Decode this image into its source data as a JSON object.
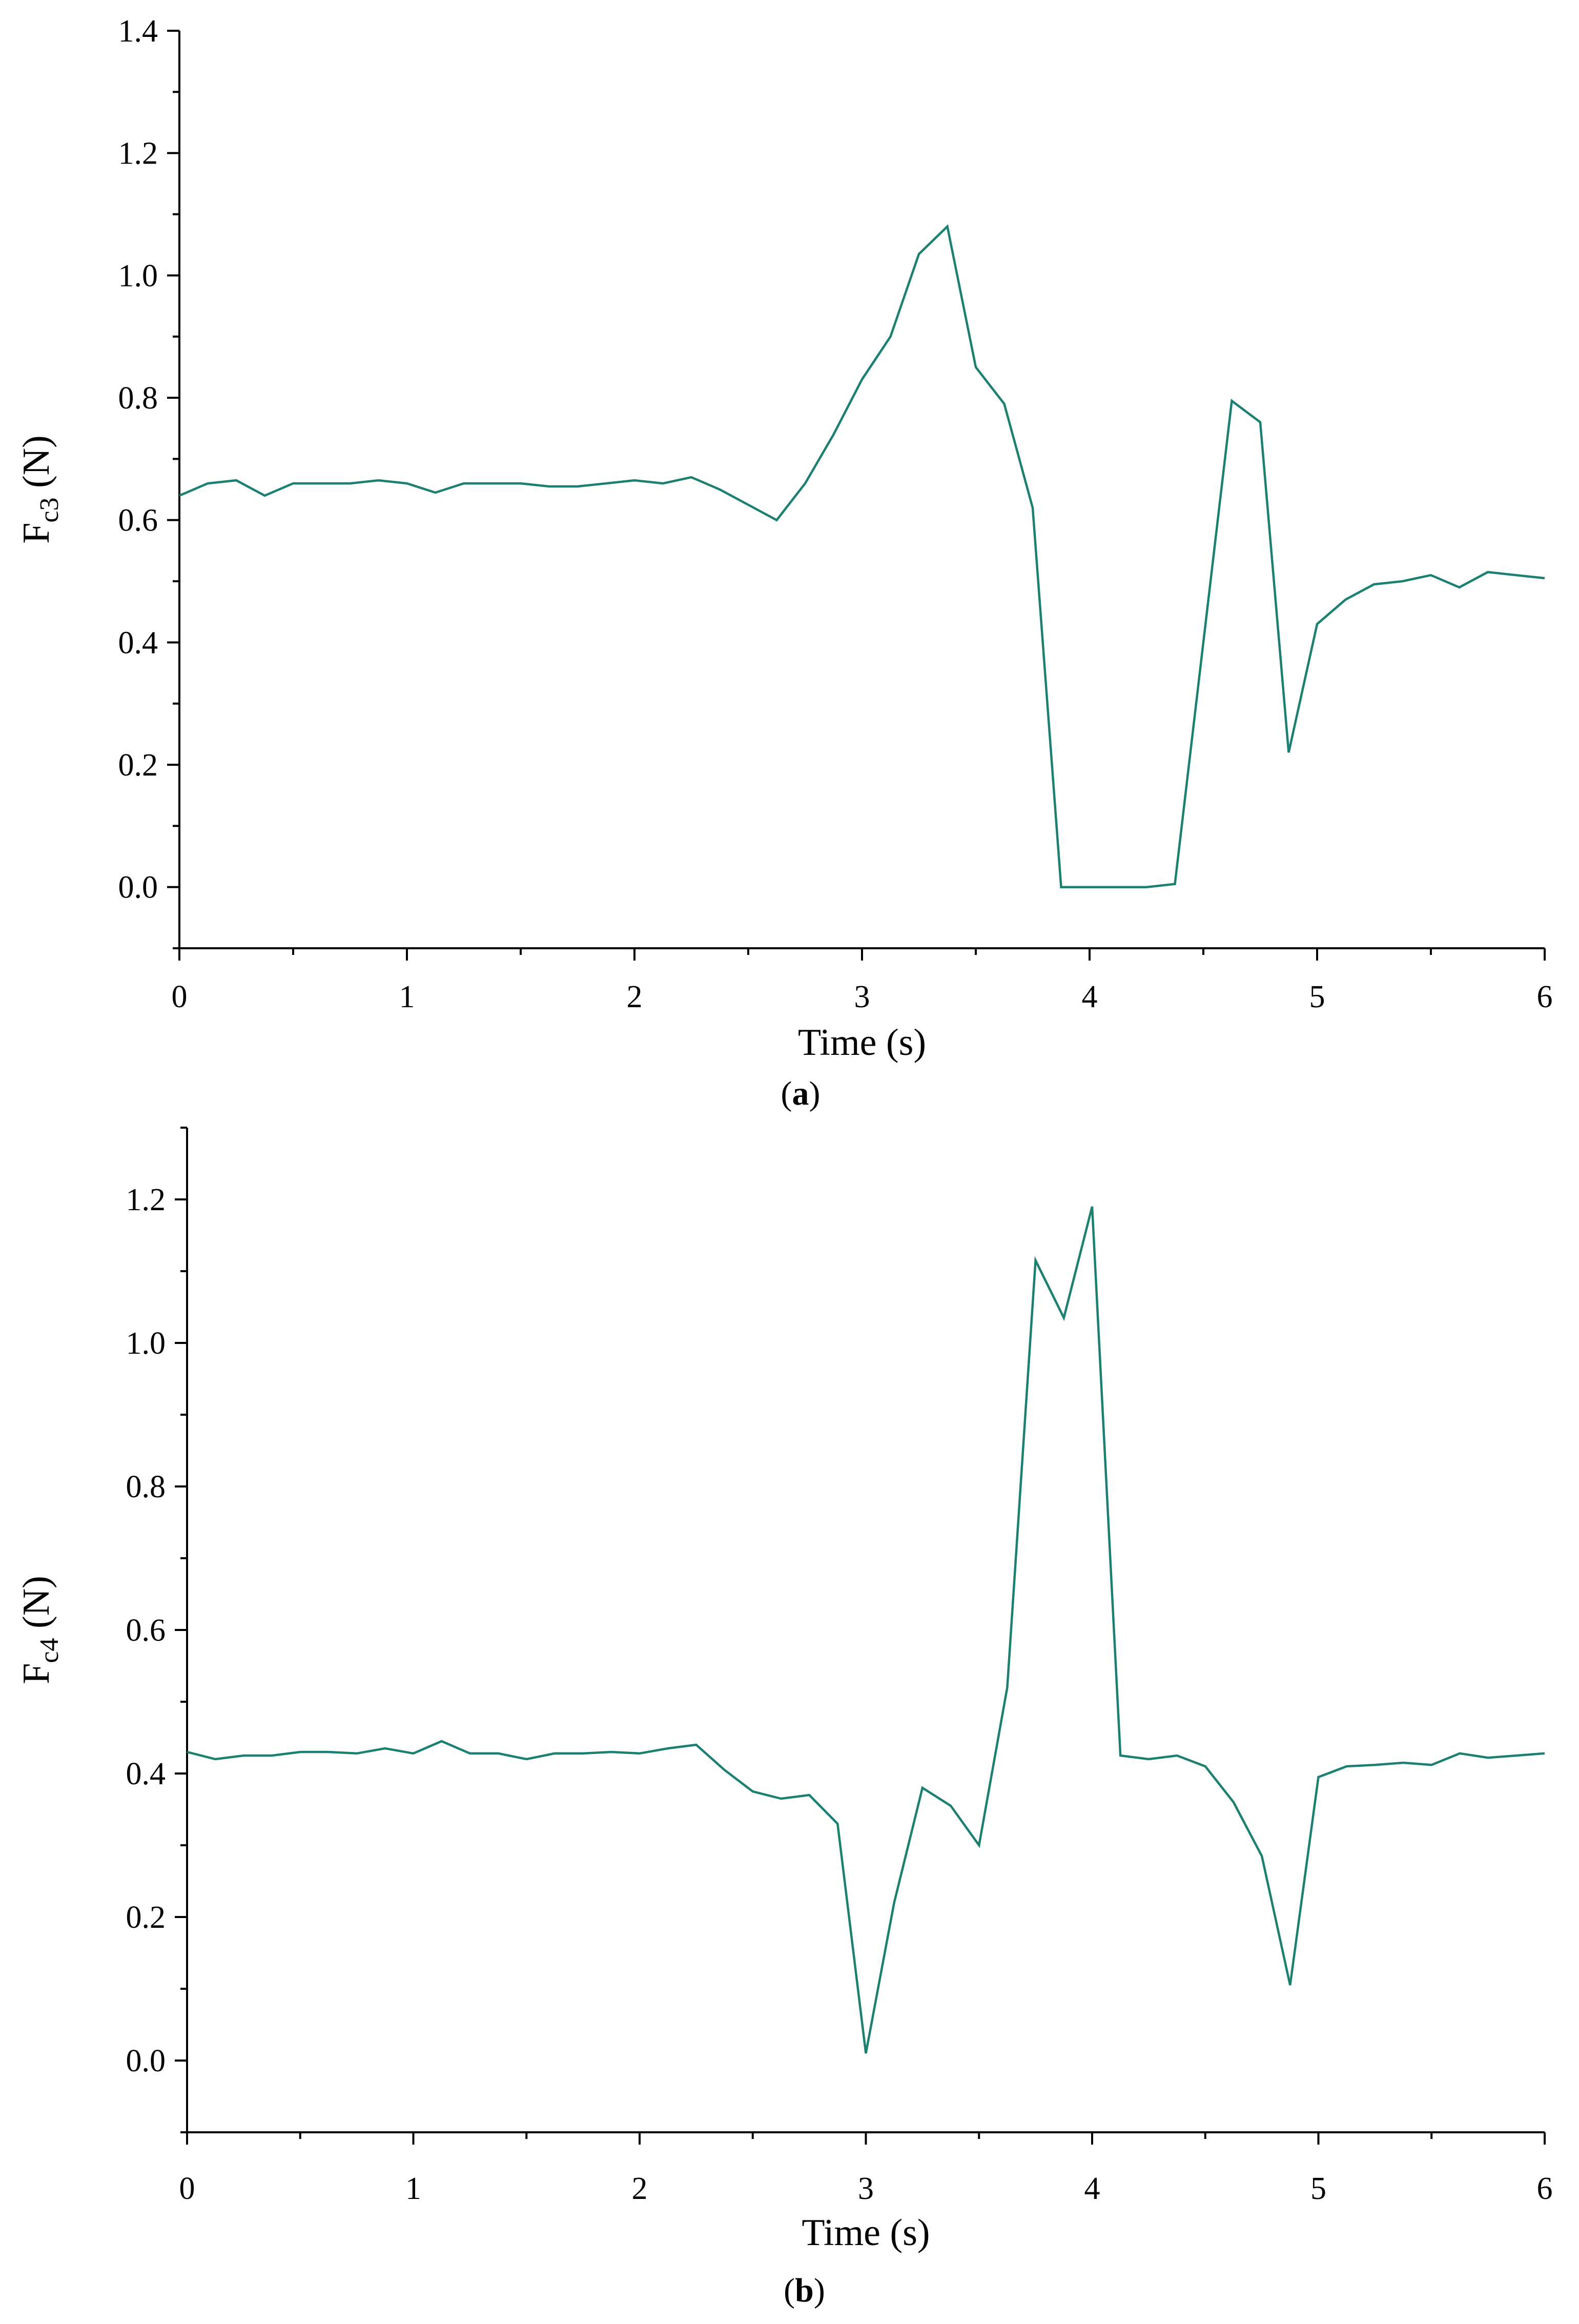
{
  "colors": {
    "series": "#1b8070",
    "axis": "#000000"
  },
  "chart_data": [
    {
      "type": "line",
      "panel_label": "a",
      "xlabel": "Time (s)",
      "ylabel_main": "F",
      "ylabel_sub": "c3",
      "ylabel_unit": " (N)",
      "xlim": [
        0,
        6
      ],
      "ylim": [
        -0.1,
        1.4
      ],
      "xticks": [
        0,
        1,
        2,
        3,
        4,
        5,
        6
      ],
      "xtick_labels": [
        "0",
        "1",
        "2",
        "3",
        "4",
        "5",
        "6"
      ],
      "yticks": [
        0,
        0.2,
        0.4,
        0.6,
        0.8,
        1.0,
        1.2,
        1.4
      ],
      "ytick_labels": [
        "0.0",
        "0.2",
        "0.4",
        "0.6",
        "0.8",
        "1.0",
        "1.2",
        "1.4"
      ],
      "grid": false,
      "series": [
        {
          "x": [
            0,
            0.125,
            0.25,
            0.375,
            0.5,
            0.625,
            0.75,
            0.875,
            1.0,
            1.125,
            1.25,
            1.375,
            1.5,
            1.625,
            1.75,
            1.875,
            2.0,
            2.125,
            2.25,
            2.375,
            2.5,
            2.625,
            2.75,
            2.875,
            3.0,
            3.125,
            3.25,
            3.375,
            3.5,
            3.625,
            3.75,
            3.875,
            4.0,
            4.125,
            4.25,
            4.375,
            4.5,
            4.625,
            4.75,
            4.875,
            5.0,
            5.125,
            5.25,
            5.375,
            5.5,
            5.625,
            5.75,
            5.875,
            6.0
          ],
          "y": [
            0.64,
            0.66,
            0.665,
            0.64,
            0.66,
            0.66,
            0.66,
            0.665,
            0.66,
            0.645,
            0.66,
            0.66,
            0.66,
            0.655,
            0.655,
            0.66,
            0.665,
            0.66,
            0.67,
            0.65,
            0.625,
            0.6,
            0.66,
            0.74,
            0.83,
            0.9,
            1.035,
            1.08,
            0.85,
            0.79,
            0.62,
            0.0,
            0.0,
            0.0,
            0.0,
            0.005,
            0.4,
            0.795,
            0.76,
            0.22,
            0.43,
            0.47,
            0.495,
            0.5,
            0.51,
            0.49,
            0.515,
            0.51,
            0.505
          ]
        }
      ]
    },
    {
      "type": "line",
      "panel_label": "b",
      "xlabel": "Time (s)",
      "ylabel_main": "F",
      "ylabel_sub": "c4",
      "ylabel_unit": " (N)",
      "xlim": [
        0,
        6
      ],
      "ylim": [
        -0.1,
        1.3
      ],
      "xticks": [
        0,
        1,
        2,
        3,
        4,
        5,
        6
      ],
      "xtick_labels": [
        "0",
        "1",
        "2",
        "3",
        "4",
        "5",
        "6"
      ],
      "yticks": [
        0,
        0.2,
        0.4,
        0.6,
        0.8,
        1.0,
        1.2
      ],
      "ytick_labels": [
        "0.0",
        "0.2",
        "0.4",
        "0.6",
        "0.8",
        "1.0",
        "1.2"
      ],
      "grid": false,
      "series": [
        {
          "x": [
            0,
            0.125,
            0.25,
            0.375,
            0.5,
            0.625,
            0.75,
            0.875,
            1.0,
            1.125,
            1.25,
            1.375,
            1.5,
            1.625,
            1.75,
            1.875,
            2.0,
            2.125,
            2.25,
            2.375,
            2.5,
            2.625,
            2.75,
            2.875,
            3.0,
            3.125,
            3.25,
            3.375,
            3.5,
            3.625,
            3.75,
            3.875,
            4.0,
            4.125,
            4.25,
            4.375,
            4.5,
            4.625,
            4.75,
            4.875,
            5.0,
            5.125,
            5.25,
            5.375,
            5.5,
            5.625,
            5.75,
            5.875,
            6.0
          ],
          "y": [
            0.43,
            0.42,
            0.425,
            0.425,
            0.43,
            0.43,
            0.428,
            0.435,
            0.428,
            0.445,
            0.428,
            0.428,
            0.42,
            0.428,
            0.428,
            0.43,
            0.428,
            0.435,
            0.44,
            0.405,
            0.375,
            0.365,
            0.37,
            0.33,
            0.01,
            0.22,
            0.38,
            0.355,
            0.3,
            0.52,
            1.115,
            1.035,
            1.19,
            0.425,
            0.42,
            0.425,
            0.41,
            0.36,
            0.285,
            0.105,
            0.395,
            0.41,
            0.412,
            0.415,
            0.412,
            0.428,
            0.422,
            0.425,
            0.428
          ]
        }
      ]
    }
  ]
}
